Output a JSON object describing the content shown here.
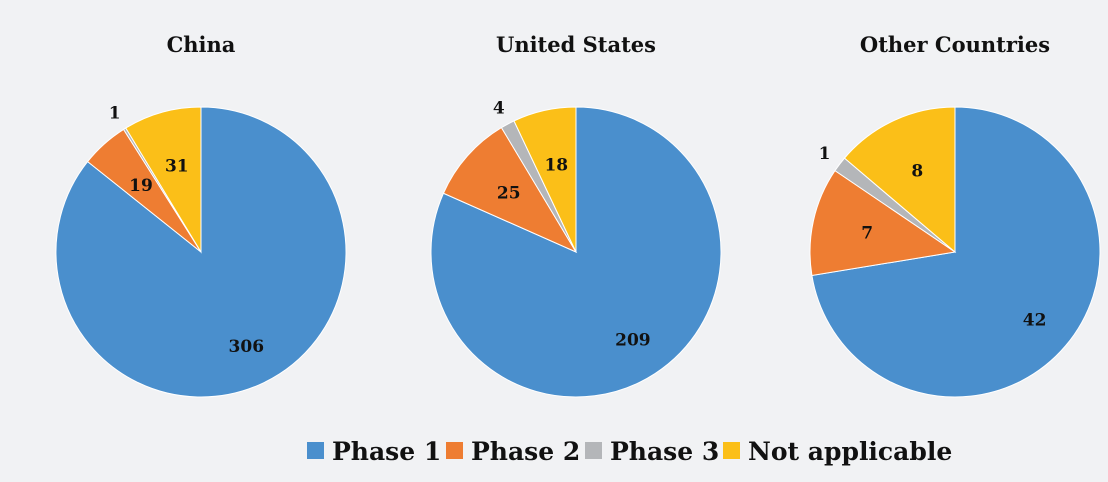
{
  "chart_data": [
    {
      "type": "pie",
      "title": "China",
      "categories": [
        "Phase 1",
        "Phase 2",
        "Phase 3",
        "Not applicable"
      ],
      "values": [
        306,
        19,
        1,
        31
      ]
    },
    {
      "type": "pie",
      "title": "United States",
      "categories": [
        "Phase 1",
        "Phase 2",
        "Phase 3",
        "Not applicable"
      ],
      "values": [
        209,
        25,
        4,
        18
      ]
    },
    {
      "type": "pie",
      "title": "Other Countries",
      "categories": [
        "Phase 1",
        "Phase 2",
        "Phase 3",
        "Not applicable"
      ],
      "values": [
        42,
        7,
        1,
        8
      ]
    }
  ],
  "legend": {
    "placement": "bottom",
    "entries": [
      {
        "label": "Phase 1",
        "color": "#4a8fcd"
      },
      {
        "label": "Phase 2",
        "color": "#ee7d32"
      },
      {
        "label": "Phase 3",
        "color": "#b4b6b9"
      },
      {
        "label": "Not applicable",
        "color": "#fbbf18"
      }
    ]
  }
}
